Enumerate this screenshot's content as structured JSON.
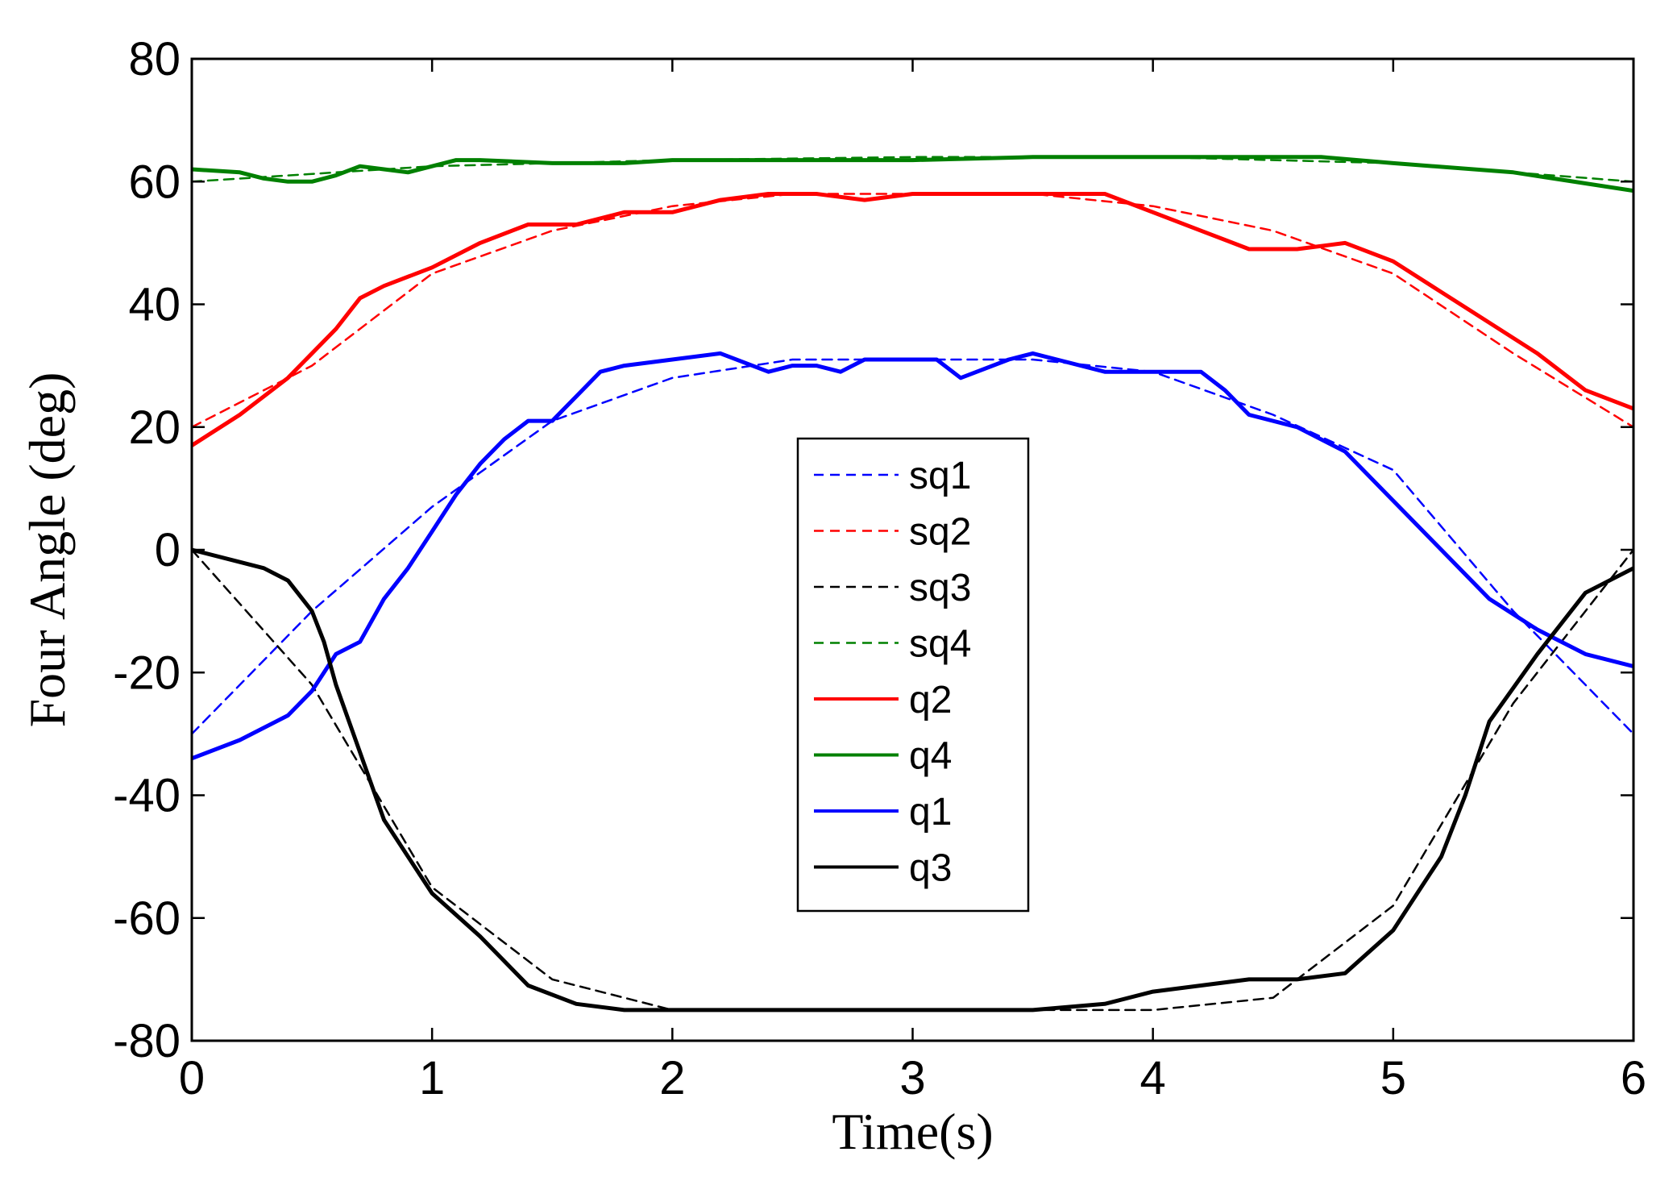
{
  "chart_data": {
    "type": "line",
    "title": "",
    "xlabel": "Time(s)",
    "ylabel": "Four Angle (deg)",
    "xlim": [
      0,
      6
    ],
    "ylim": [
      -80,
      80
    ],
    "xticks": [
      0,
      1,
      2,
      3,
      4,
      5,
      6
    ],
    "yticks": [
      -80,
      -60,
      -40,
      -20,
      0,
      20,
      40,
      60,
      80
    ],
    "xtick_labels": [
      "0",
      "1",
      "2",
      "3",
      "4",
      "5",
      "6"
    ],
    "ytick_labels": [
      "-80",
      "-60",
      "-40",
      "-20",
      "0",
      "20",
      "40",
      "60",
      "80"
    ],
    "grid": false,
    "legend_position": "center",
    "series": [
      {
        "name": "sq1",
        "style": "dashed",
        "color": "#0000ff",
        "x": [
          0,
          0.5,
          1,
          1.5,
          2,
          2.5,
          3,
          3.5,
          4,
          4.5,
          5,
          5.5,
          6
        ],
        "y": [
          -30,
          -10,
          7,
          21,
          28,
          31,
          31,
          31,
          29,
          22,
          13,
          -10,
          -30
        ]
      },
      {
        "name": "sq2",
        "style": "dashed",
        "color": "#ff0000",
        "x": [
          0,
          0.5,
          1,
          1.5,
          2,
          2.5,
          3,
          3.5,
          4,
          4.5,
          5,
          5.5,
          6
        ],
        "y": [
          20,
          30,
          45,
          52,
          56,
          58,
          58,
          58,
          56,
          52,
          45,
          32,
          20
        ]
      },
      {
        "name": "sq3",
        "style": "dashed",
        "color": "#000000",
        "x": [
          0,
          0.5,
          1,
          1.5,
          2,
          2.5,
          3,
          3.5,
          4,
          4.5,
          5,
          5.5,
          6
        ],
        "y": [
          0,
          -22,
          -55,
          -70,
          -75,
          -75,
          -75,
          -75,
          -75,
          -73,
          -58,
          -25,
          0
        ]
      },
      {
        "name": "sq4",
        "style": "dashed",
        "color": "#008000",
        "x": [
          0,
          1,
          2,
          3,
          4,
          5,
          6
        ],
        "y": [
          60,
          62.5,
          63.5,
          64,
          64,
          63,
          60
        ]
      },
      {
        "name": "q2",
        "style": "solid",
        "color": "#ff0000",
        "x": [
          0,
          0.2,
          0.4,
          0.6,
          0.7,
          0.8,
          1,
          1.2,
          1.4,
          1.6,
          1.8,
          2,
          2.2,
          2.4,
          2.6,
          2.8,
          3,
          3.2,
          3.4,
          3.6,
          3.8,
          4,
          4.2,
          4.4,
          4.6,
          4.8,
          5,
          5.2,
          5.4,
          5.6,
          5.8,
          6
        ],
        "y": [
          17,
          22,
          28,
          36,
          41,
          43,
          46,
          50,
          53,
          53,
          55,
          55,
          57,
          58,
          58,
          57,
          58,
          58,
          58,
          58,
          58,
          55,
          52,
          49,
          49,
          50,
          47,
          42,
          37,
          32,
          26,
          23
        ]
      },
      {
        "name": "q4",
        "style": "solid",
        "color": "#008000",
        "x": [
          0,
          0.2,
          0.3,
          0.4,
          0.5,
          0.6,
          0.7,
          0.8,
          0.9,
          1,
          1.1,
          1.2,
          1.5,
          1.8,
          2,
          2.5,
          3,
          3.5,
          4,
          4.5,
          4.7,
          5,
          5.5,
          6
        ],
        "y": [
          62,
          61.5,
          60.5,
          60,
          60,
          61,
          62.5,
          62,
          61.5,
          62.5,
          63.5,
          63.5,
          63,
          63,
          63.5,
          63.5,
          63.5,
          64,
          64,
          64,
          64,
          63,
          61.5,
          58.5
        ]
      },
      {
        "name": "q1",
        "style": "solid",
        "color": "#0000ff",
        "x": [
          0,
          0.2,
          0.4,
          0.5,
          0.6,
          0.7,
          0.8,
          0.9,
          1,
          1.1,
          1.2,
          1.3,
          1.4,
          1.5,
          1.6,
          1.7,
          1.8,
          2,
          2.2,
          2.4,
          2.5,
          2.6,
          2.7,
          2.8,
          3,
          3.1,
          3.2,
          3.4,
          3.5,
          3.6,
          3.8,
          4,
          4.2,
          4.3,
          4.4,
          4.6,
          4.8,
          5,
          5.2,
          5.4,
          5.6,
          5.8,
          6
        ],
        "y": [
          -34,
          -31,
          -27,
          -23,
          -17,
          -15,
          -8,
          -3,
          3,
          9,
          14,
          18,
          21,
          21,
          25,
          29,
          30,
          31,
          32,
          29,
          30,
          30,
          29,
          31,
          31,
          31,
          28,
          31,
          32,
          31,
          29,
          29,
          29,
          26,
          22,
          20,
          16,
          8,
          0,
          -8,
          -13,
          -17,
          -19
        ]
      },
      {
        "name": "q3",
        "style": "solid",
        "color": "#000000",
        "x": [
          0,
          0.2,
          0.3,
          0.4,
          0.5,
          0.55,
          0.6,
          0.7,
          0.8,
          1,
          1.2,
          1.4,
          1.6,
          1.8,
          2,
          2.5,
          3,
          3.5,
          3.8,
          4,
          4.2,
          4.4,
          4.6,
          4.8,
          5,
          5.1,
          5.2,
          5.3,
          5.4,
          5.6,
          5.8,
          6
        ],
        "y": [
          0,
          -2,
          -3,
          -5,
          -10,
          -15,
          -22,
          -33,
          -44,
          -56,
          -63,
          -71,
          -74,
          -75,
          -75,
          -75,
          -75,
          -75,
          -74,
          -72,
          -71,
          -70,
          -70,
          -69,
          -62,
          -56,
          -50,
          -40,
          -28,
          -17,
          -7,
          -3
        ]
      }
    ]
  }
}
